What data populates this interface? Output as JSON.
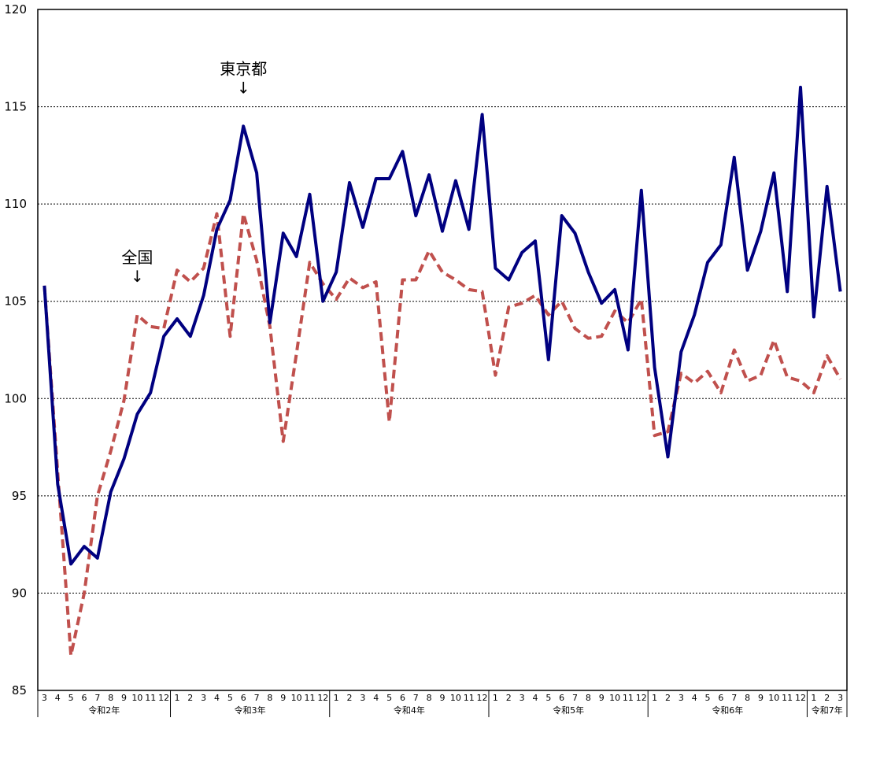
{
  "chart_data": {
    "type": "line",
    "title": "",
    "xlabel": "",
    "ylabel": "",
    "ylim": [
      85,
      120
    ],
    "yticks": [
      85,
      90,
      95,
      100,
      105,
      110,
      115,
      120
    ],
    "grid": true,
    "x": [
      "3",
      "4",
      "5",
      "6",
      "7",
      "8",
      "9",
      "10",
      "11",
      "12",
      "1",
      "2",
      "3",
      "4",
      "5",
      "6",
      "7",
      "8",
      "9",
      "10",
      "11",
      "12",
      "1",
      "2",
      "3",
      "4",
      "5",
      "6",
      "7",
      "8",
      "9",
      "10",
      "11",
      "12",
      "1",
      "2",
      "3",
      "4",
      "5",
      "6",
      "7",
      "8",
      "9",
      "10",
      "11",
      "12",
      "1",
      "2",
      "3",
      "4",
      "5",
      "6",
      "7",
      "8",
      "9",
      "10",
      "11",
      "12",
      "1",
      "2",
      "3"
    ],
    "year_groups": [
      {
        "label": "令和2年",
        "count": 10
      },
      {
        "label": "令和3年",
        "count": 12
      },
      {
        "label": "令和4年",
        "count": 12
      },
      {
        "label": "令和5年",
        "count": 12
      },
      {
        "label": "令和6年",
        "count": 12
      },
      {
        "label": "令和7年",
        "count": 3
      }
    ],
    "series": [
      {
        "name": "東京都",
        "color": "#000080",
        "style": "solid",
        "values": [
          105.8,
          95.6,
          91.5,
          92.4,
          91.8,
          95.2,
          96.9,
          99.2,
          100.3,
          103.2,
          104.1,
          103.2,
          105.3,
          108.7,
          110.2,
          114.0,
          111.6,
          103.9,
          108.5,
          107.3,
          110.5,
          105.0,
          106.5,
          111.1,
          108.8,
          111.3,
          111.3,
          112.7,
          109.4,
          111.5,
          108.6,
          111.2,
          108.7,
          114.6,
          106.7,
          106.1,
          107.5,
          108.1,
          102.0,
          109.4,
          108.5,
          106.5,
          104.9,
          105.6,
          102.5,
          110.7,
          101.6,
          97.0,
          102.4,
          104.3,
          107.0,
          107.9,
          112.4,
          106.6,
          108.6,
          111.6,
          105.5,
          116.0,
          104.2,
          110.9,
          105.5
        ]
      },
      {
        "name": "全国",
        "color": "#c0504d",
        "style": "dashed",
        "values": [
          105.8,
          96.2,
          86.8,
          90.0,
          95.0,
          97.3,
          99.9,
          104.3,
          103.7,
          103.6,
          106.6,
          106.0,
          106.7,
          109.5,
          103.2,
          109.5,
          107.1,
          103.7,
          97.8,
          102.3,
          107.0,
          105.9,
          105.1,
          106.2,
          105.7,
          106.0,
          98.8,
          106.1,
          106.1,
          107.6,
          106.5,
          106.1,
          105.6,
          105.5,
          101.2,
          104.7,
          104.9,
          105.3,
          104.3,
          105.0,
          103.6,
          103.1,
          103.2,
          104.5,
          103.9,
          105.1,
          98.1,
          98.3,
          101.3,
          100.8,
          101.4,
          100.3,
          102.5,
          100.9,
          101.2,
          103.0,
          101.1,
          100.9,
          100.3,
          102.2,
          101.0
        ]
      }
    ],
    "annotations": [
      {
        "text": "東京都",
        "arrow": "↓",
        "series": 0,
        "x_index": 15
      },
      {
        "text": "全国",
        "arrow": "↓",
        "series": 1,
        "x_index": 7
      }
    ]
  }
}
